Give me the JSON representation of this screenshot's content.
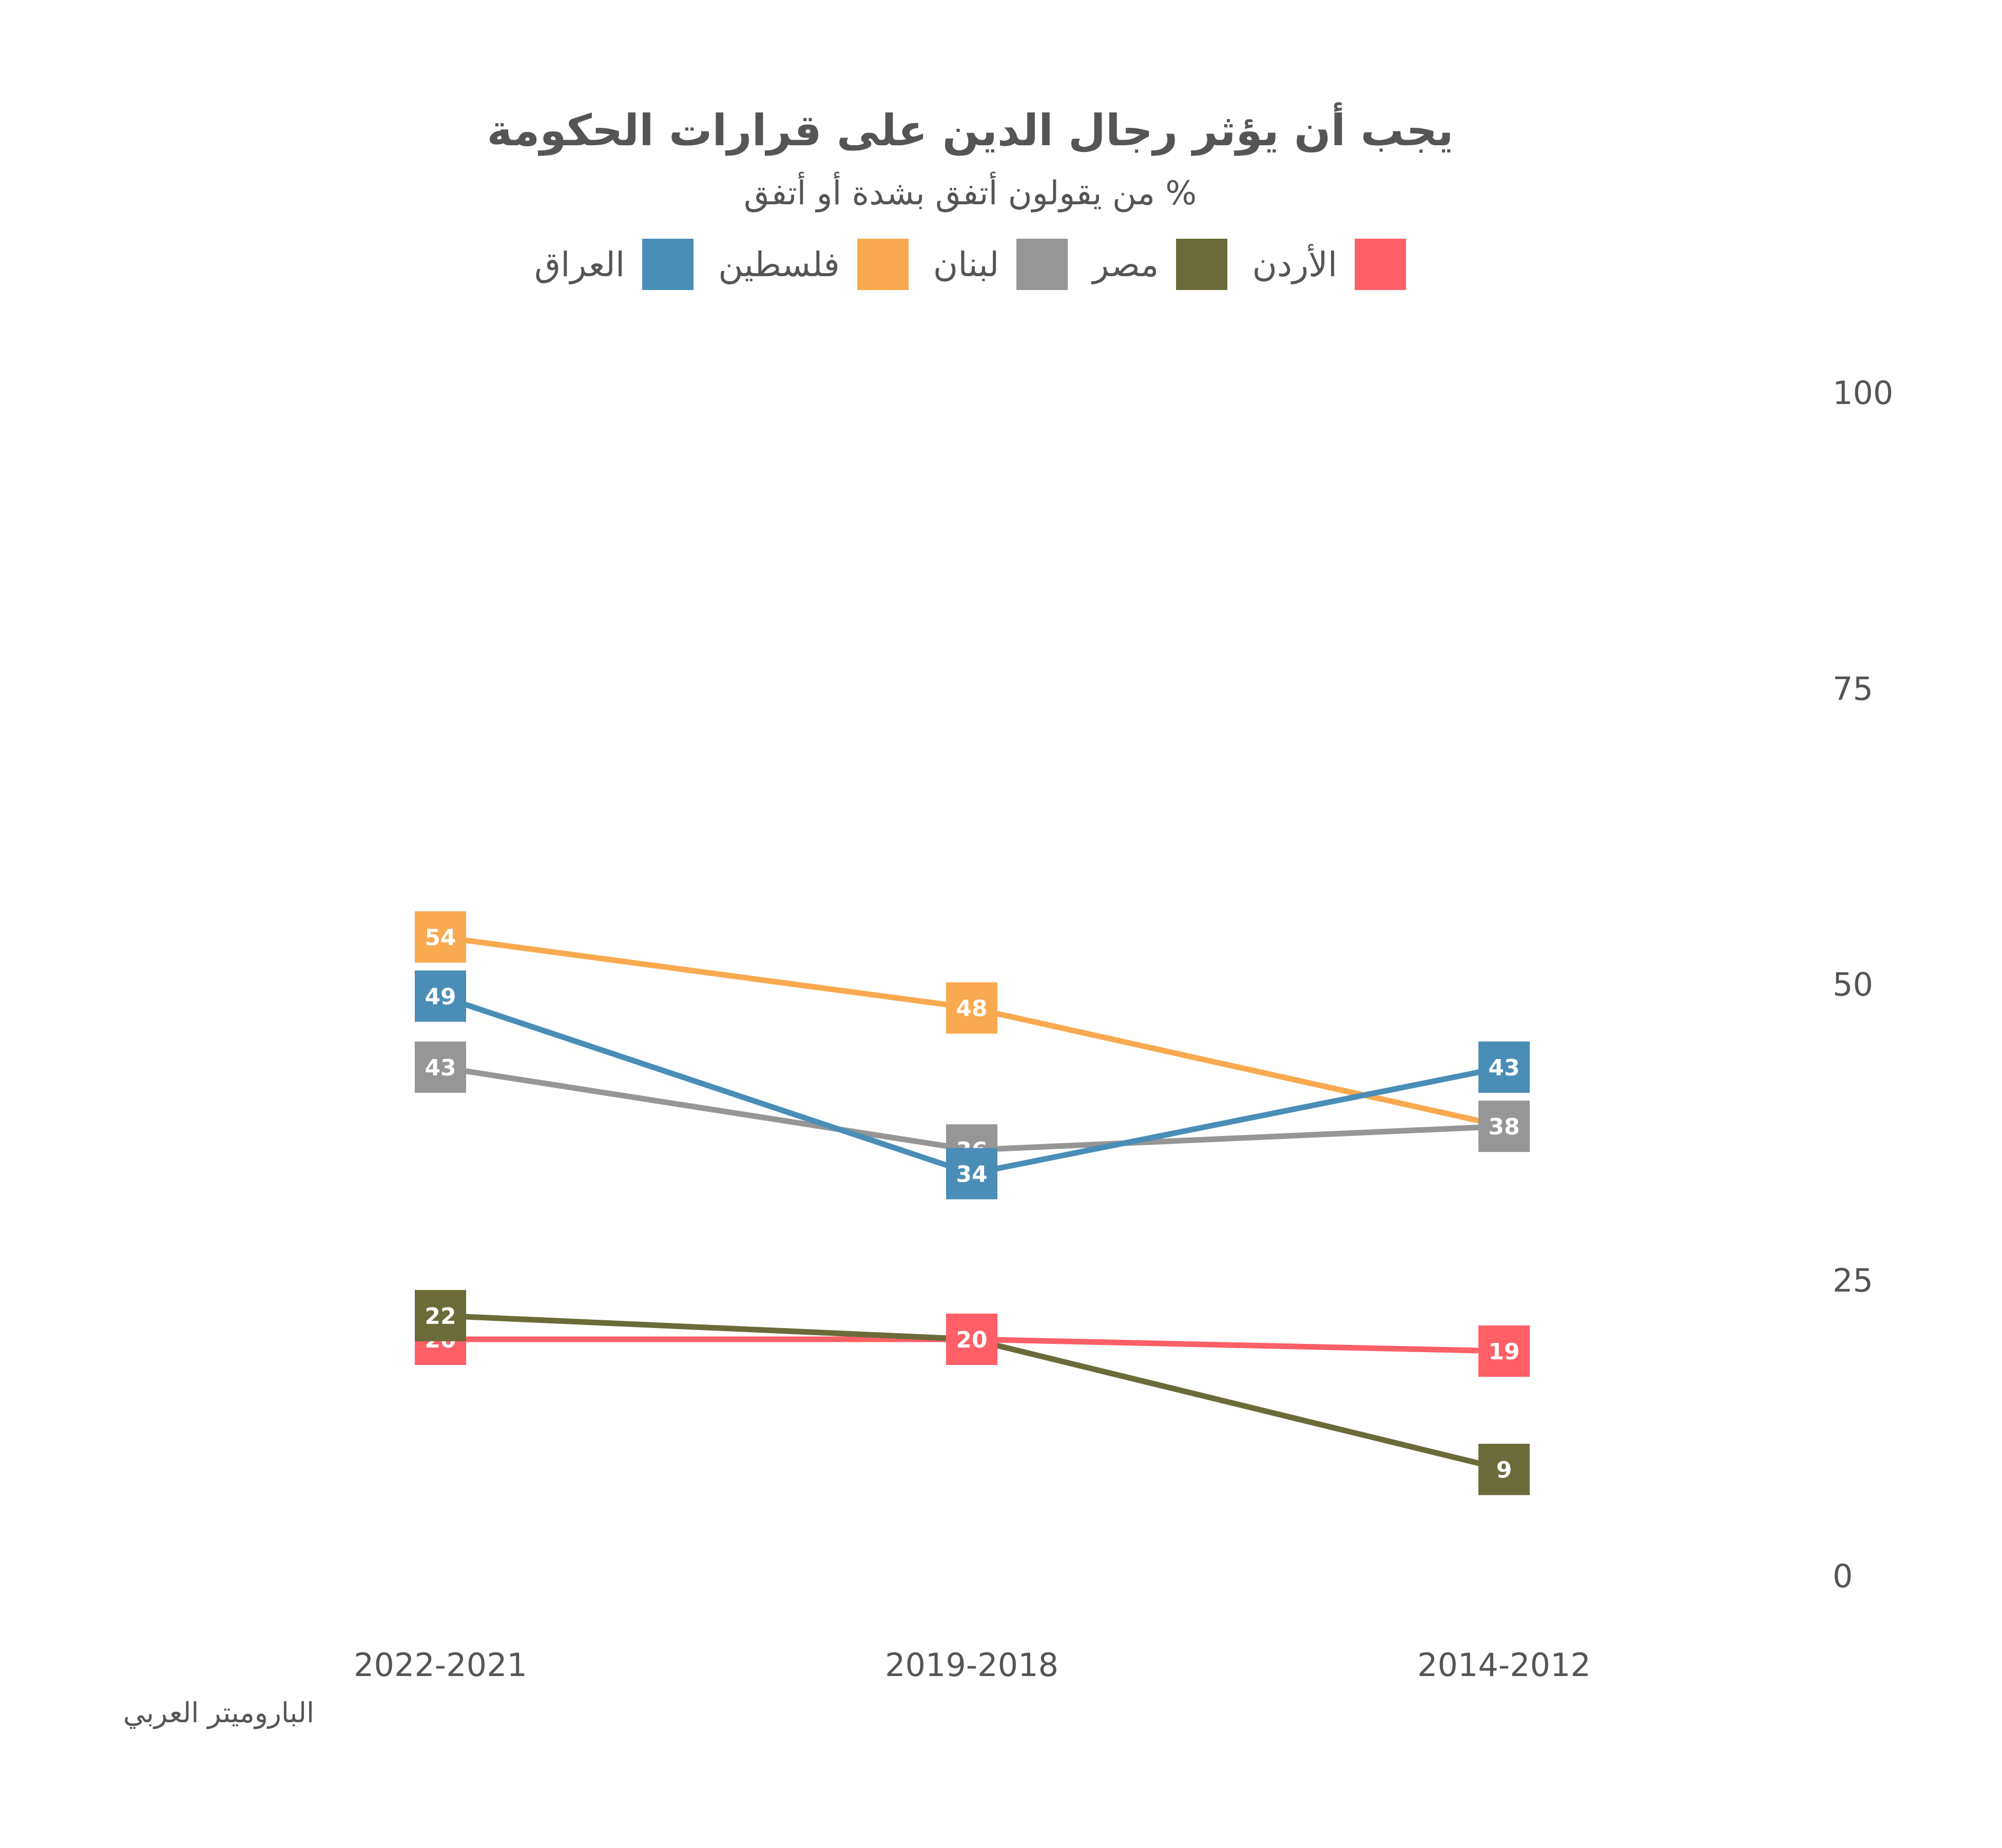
{
  "chart_data": {
    "type": "line",
    "title": "يجب أن يؤثر رجال الدين على قرارات الحكومة",
    "subtitle": "% من يقولون أتفق بشدة أو أتفق",
    "categories": [
      "2022-2021",
      "2019-2018",
      "2014-2012"
    ],
    "ylim": [
      0,
      100
    ],
    "yticks": [
      0,
      25,
      50,
      75,
      100
    ],
    "grid": false,
    "legend_position": "top",
    "series": [
      {
        "name": "الأردن",
        "color": "#FF5F67",
        "values": [
          20,
          20,
          19
        ]
      },
      {
        "name": "مصر",
        "color": "#6B6B3A",
        "values": [
          22,
          null,
          9
        ]
      },
      {
        "name": "لبنان",
        "color": "#969696",
        "values": [
          43,
          36,
          38
        ]
      },
      {
        "name": "فلسطين",
        "color": "#F9A94F",
        "values": [
          54,
          48,
          null
        ]
      },
      {
        "name": "العراق",
        "color": "#4A8DB7",
        "values": [
          49,
          34,
          43
        ]
      }
    ],
    "line_values": {
      "مصر": [
        22,
        20,
        9
      ],
      "فلسطين": [
        54,
        48,
        38
      ]
    }
  },
  "legend": [
    {
      "label": "الأردن",
      "color": "#FF5F67"
    },
    {
      "label": "مصر",
      "color": "#6B6B3A"
    },
    {
      "label": "لبنان",
      "color": "#969696"
    },
    {
      "label": "فلسطين",
      "color": "#F9A94F"
    },
    {
      "label": "العراق",
      "color": "#4A8DB7"
    }
  ],
  "source": "الباروميتر العربي"
}
